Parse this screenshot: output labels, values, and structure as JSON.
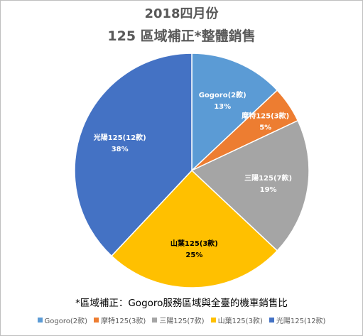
{
  "chart_data": {
    "type": "pie",
    "title": "2018四月份",
    "subtitle": "125 區域補正*整體銷售",
    "note": "*區域補正：Gogoro服務區域與全臺的機車銷售比",
    "legend_position": "bottom",
    "slices": [
      {
        "name": "Gogoro(2款)",
        "value": 13,
        "label": "13%",
        "color": "#5b9bd5",
        "label_color": "#ffffff"
      },
      {
        "name": "摩特125(3款)",
        "value": 5,
        "label": "5%",
        "color": "#ed7d31",
        "label_color": "#ffffff"
      },
      {
        "name": "三陽125(7款)",
        "value": 19,
        "label": "19%",
        "color": "#a5a5a5",
        "label_color": "#ffffff"
      },
      {
        "name": "山葉125(3款)",
        "value": 25,
        "label": "25%",
        "color": "#ffc000",
        "label_color": "#000000"
      },
      {
        "name": "光陽125(12款)",
        "value": 38,
        "label": "38%",
        "color": "#4472c4",
        "label_color": "#ffffff"
      }
    ]
  }
}
